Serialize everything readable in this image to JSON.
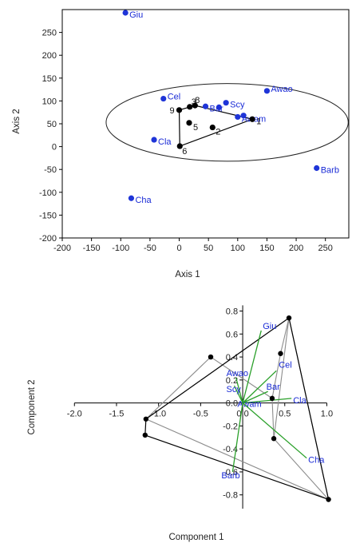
{
  "colors": {
    "blue": "#1f35d8",
    "black": "#000000",
    "green": "#2aa02a",
    "gray": "#8c8c8c"
  },
  "chart_data": [
    {
      "type": "scatter",
      "xlabel": "Axis 1",
      "ylabel": "Axis 2",
      "xlim": [
        -200,
        290
      ],
      "ylim": [
        -200,
        300
      ],
      "xticks": [
        "-200",
        "-150",
        "-100",
        "-50",
        "0",
        "50",
        "100",
        "150",
        "200",
        "250"
      ],
      "yticks": [
        "-200",
        "-150",
        "-100",
        "-50",
        "0",
        "50",
        "100",
        "150",
        "200",
        "250"
      ],
      "grid": false,
      "variables": [
        {
          "label": "Giu",
          "x": -92,
          "y": 293
        },
        {
          "label": "Cel",
          "x": -27,
          "y": 105
        },
        {
          "label": "Cla",
          "x": -43,
          "y": 15
        },
        {
          "label": "Cha",
          "x": -82,
          "y": -113
        },
        {
          "label": "Awao",
          "x": 150,
          "y": 122
        },
        {
          "label": "Scy",
          "x": 80,
          "y": 96
        },
        {
          "label": "Bar",
          "x": 45,
          "y": 88
        },
        {
          "label": "Awam",
          "x": 100,
          "y": 65
        },
        {
          "label": "Barb",
          "x": 235,
          "y": -47
        }
      ],
      "extra_points": [
        {
          "x": 68,
          "y": 86
        },
        {
          "x": 110,
          "y": 68
        }
      ],
      "points": [
        {
          "label": "1",
          "x": 125,
          "y": 60
        },
        {
          "label": "2",
          "x": 57,
          "y": 42
        },
        {
          "label": "3",
          "x": 18,
          "y": 87
        },
        {
          "label": "5",
          "x": 17,
          "y": 52
        },
        {
          "label": "6",
          "x": 1,
          "y": 1
        },
        {
          "label": "8",
          "x": 27,
          "y": 90
        },
        {
          "label": "9",
          "x": 0,
          "y": 80
        }
      ],
      "hull": [
        "9",
        "8",
        "1",
        "6"
      ],
      "ellipse": {
        "cx": 82,
        "cy": 53,
        "rx": 207,
        "ry": 85
      }
    },
    {
      "type": "scatter",
      "xlabel": "Component 1",
      "ylabel": "Component 2",
      "xlim": [
        -2.05,
        1.1
      ],
      "ylim": [
        -0.92,
        0.88
      ],
      "xticks": [
        "-2.0",
        "-1.5",
        "-1.0",
        "-0.5",
        "0.0",
        "0.5",
        "1.0"
      ],
      "yticks": [
        "0.8",
        "0.6",
        "0.4",
        "0.2",
        "0.0",
        "-0.2",
        "-0.4",
        "-0.6",
        "-0.8"
      ],
      "grid": false,
      "points": [
        {
          "x": 0.55,
          "y": 0.74
        },
        {
          "x": 0.45,
          "y": 0.43
        },
        {
          "x": -0.38,
          "y": 0.4
        },
        {
          "x": 0.35,
          "y": 0.04
        },
        {
          "x": -1.15,
          "y": -0.14
        },
        {
          "x": -1.16,
          "y": -0.28
        },
        {
          "x": 0.37,
          "y": -0.31
        },
        {
          "x": 1.02,
          "y": -0.84
        }
      ],
      "hull": [
        0,
        4,
        5,
        7
      ],
      "gray_links": [
        [
          0,
          1
        ],
        [
          0,
          6
        ],
        [
          0,
          7
        ],
        [
          2,
          4
        ],
        [
          2,
          3
        ],
        [
          1,
          3
        ],
        [
          3,
          6
        ],
        [
          6,
          7
        ],
        [
          4,
          7
        ]
      ],
      "loadings": [
        {
          "label": "Giu",
          "x": 0.22,
          "y": 0.63
        },
        {
          "label": "Cel",
          "x": 0.4,
          "y": 0.28
        },
        {
          "label": "Awao",
          "x": -0.08,
          "y": 0.22
        },
        {
          "label": "Scy",
          "x": -0.1,
          "y": 0.15
        },
        {
          "label": "Bar",
          "x": 0.3,
          "y": 0.1
        },
        {
          "label": "Cla",
          "x": 0.58,
          "y": 0.04
        },
        {
          "label": "Awam",
          "x": 0.05,
          "y": 0.02
        },
        {
          "label": "Cha",
          "x": 0.76,
          "y": -0.48
        },
        {
          "label": "Barb",
          "x": -0.12,
          "y": -0.6
        }
      ]
    }
  ]
}
